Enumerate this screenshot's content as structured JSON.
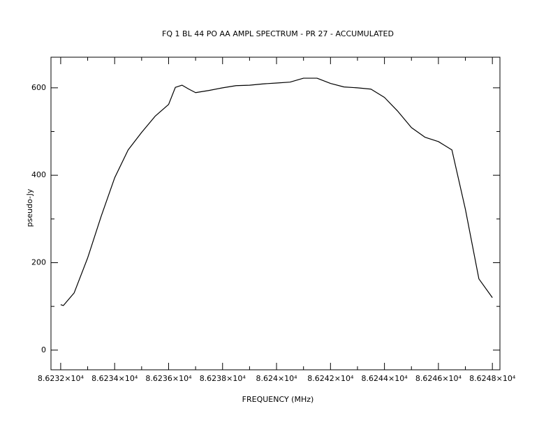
{
  "chart_data": {
    "type": "line",
    "title": "FQ 1  BL 44  PO AA  AMPL SPECTRUM - PR   27 - ACCUMULATED",
    "xlabel": "FREQUENCY (MHz)",
    "ylabel": "pseudo-Jy",
    "xlim": [
      86231.64,
      86248.28
    ],
    "ylim": [
      -45,
      670
    ],
    "xticks": [
      {
        "value": 86232,
        "label": "8.6232×10⁴"
      },
      {
        "value": 86234,
        "label": "8.6234×10⁴"
      },
      {
        "value": 86236,
        "label": "8.6236×10⁴"
      },
      {
        "value": 86238,
        "label": "8.6238×10⁴"
      },
      {
        "value": 86240,
        "label": "8.624×10⁴"
      },
      {
        "value": 86242,
        "label": "8.6242×10⁴"
      },
      {
        "value": 86244,
        "label": "8.6244×10⁴"
      },
      {
        "value": 86246,
        "label": "8.6246×10⁴"
      },
      {
        "value": 86248,
        "label": "8.6248×10⁴"
      }
    ],
    "xminor_ticks": [
      86233,
      86235,
      86237,
      86239,
      86241,
      86243,
      86245,
      86247
    ],
    "yticks": [
      0,
      200,
      400,
      600
    ],
    "yminor_ticks": [
      100,
      300,
      500
    ],
    "color": "#000000",
    "x": [
      86232,
      86232.1,
      86232.5,
      86233,
      86233.5,
      86234,
      86234.5,
      86235,
      86235.5,
      86236,
      86236.25,
      86236.5,
      86236.75,
      86237,
      86237.5,
      86238,
      86238.5,
      86239,
      86239.5,
      86240,
      86240.5,
      86241,
      86241.5,
      86242,
      86242.5,
      86243,
      86243.5,
      86244,
      86244.5,
      86245,
      86245.5,
      86246,
      86246.5,
      86247,
      86247.5,
      86248
    ],
    "values": [
      104,
      102,
      131,
      211,
      306,
      394,
      458,
      498,
      535,
      562,
      601,
      606,
      597,
      589,
      594,
      600,
      605,
      606,
      609,
      611,
      613,
      622,
      622,
      610,
      602,
      600,
      597,
      578,
      546,
      509,
      487,
      477,
      458,
      322,
      163,
      120
    ]
  }
}
